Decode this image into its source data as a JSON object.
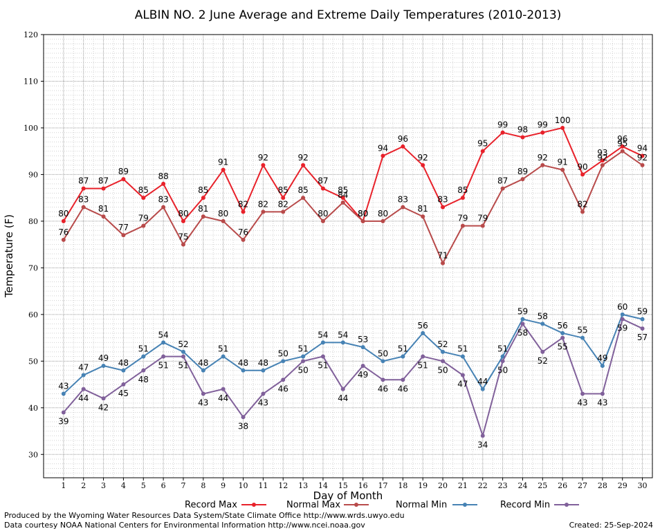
{
  "chart_data": {
    "type": "line",
    "title": "ALBIN NO. 2 June Average and Extreme Daily Temperatures (2010-2013)",
    "xlabel": "Day of Month",
    "ylabel": "Temperature (F)",
    "ylim": [
      25,
      120
    ],
    "yticks": [
      30,
      40,
      50,
      60,
      70,
      80,
      90,
      100,
      110,
      120
    ],
    "grid": true,
    "x": [
      1,
      2,
      3,
      4,
      5,
      6,
      7,
      8,
      9,
      10,
      11,
      12,
      13,
      14,
      15,
      16,
      17,
      18,
      19,
      20,
      21,
      22,
      23,
      24,
      25,
      26,
      27,
      28,
      29,
      30
    ],
    "series": [
      {
        "name": "Record Max",
        "color": "#e8212a",
        "labels_above": true,
        "values": [
          80,
          87,
          87,
          89,
          85,
          88,
          80,
          85,
          91,
          82,
          92,
          85,
          92,
          87,
          85,
          80,
          94,
          96,
          92,
          83,
          85,
          95,
          99,
          98,
          99,
          100,
          90,
          93,
          96,
          94
        ]
      },
      {
        "name": "Normal Max",
        "color": "#b84a4a",
        "labels_above": true,
        "values": [
          76,
          83,
          81,
          77,
          79,
          83,
          75,
          81,
          80,
          76,
          82,
          82,
          85,
          80,
          84,
          80,
          80,
          83,
          81,
          71,
          79,
          79,
          87,
          89,
          92,
          91,
          82,
          92,
          95,
          92
        ]
      },
      {
        "name": "Normal Min",
        "color": "#4682b4",
        "labels_above": true,
        "values": [
          43,
          47,
          49,
          48,
          51,
          54,
          52,
          48,
          51,
          48,
          48,
          50,
          51,
          54,
          54,
          53,
          50,
          51,
          56,
          52,
          51,
          44,
          51,
          59,
          58,
          56,
          55,
          49,
          60,
          59
        ]
      },
      {
        "name": "Record Min",
        "color": "#80609a",
        "labels_above": false,
        "values": [
          39,
          44,
          42,
          45,
          48,
          51,
          51,
          43,
          44,
          38,
          43,
          46,
          50,
          51,
          44,
          49,
          46,
          46,
          51,
          50,
          47,
          34,
          50,
          58,
          52,
          55,
          43,
          43,
          59,
          57
        ]
      }
    ]
  },
  "footer": {
    "produced": "Produced by the Wyoming Water Resources Data System/State Climate Office http://www.wrds.uwyo.edu",
    "courtesy": "Data courtesy NOAA National Centers for Environmental Information http://www.ncei.noaa.gov",
    "created": "Created:  25-Sep-2024"
  }
}
